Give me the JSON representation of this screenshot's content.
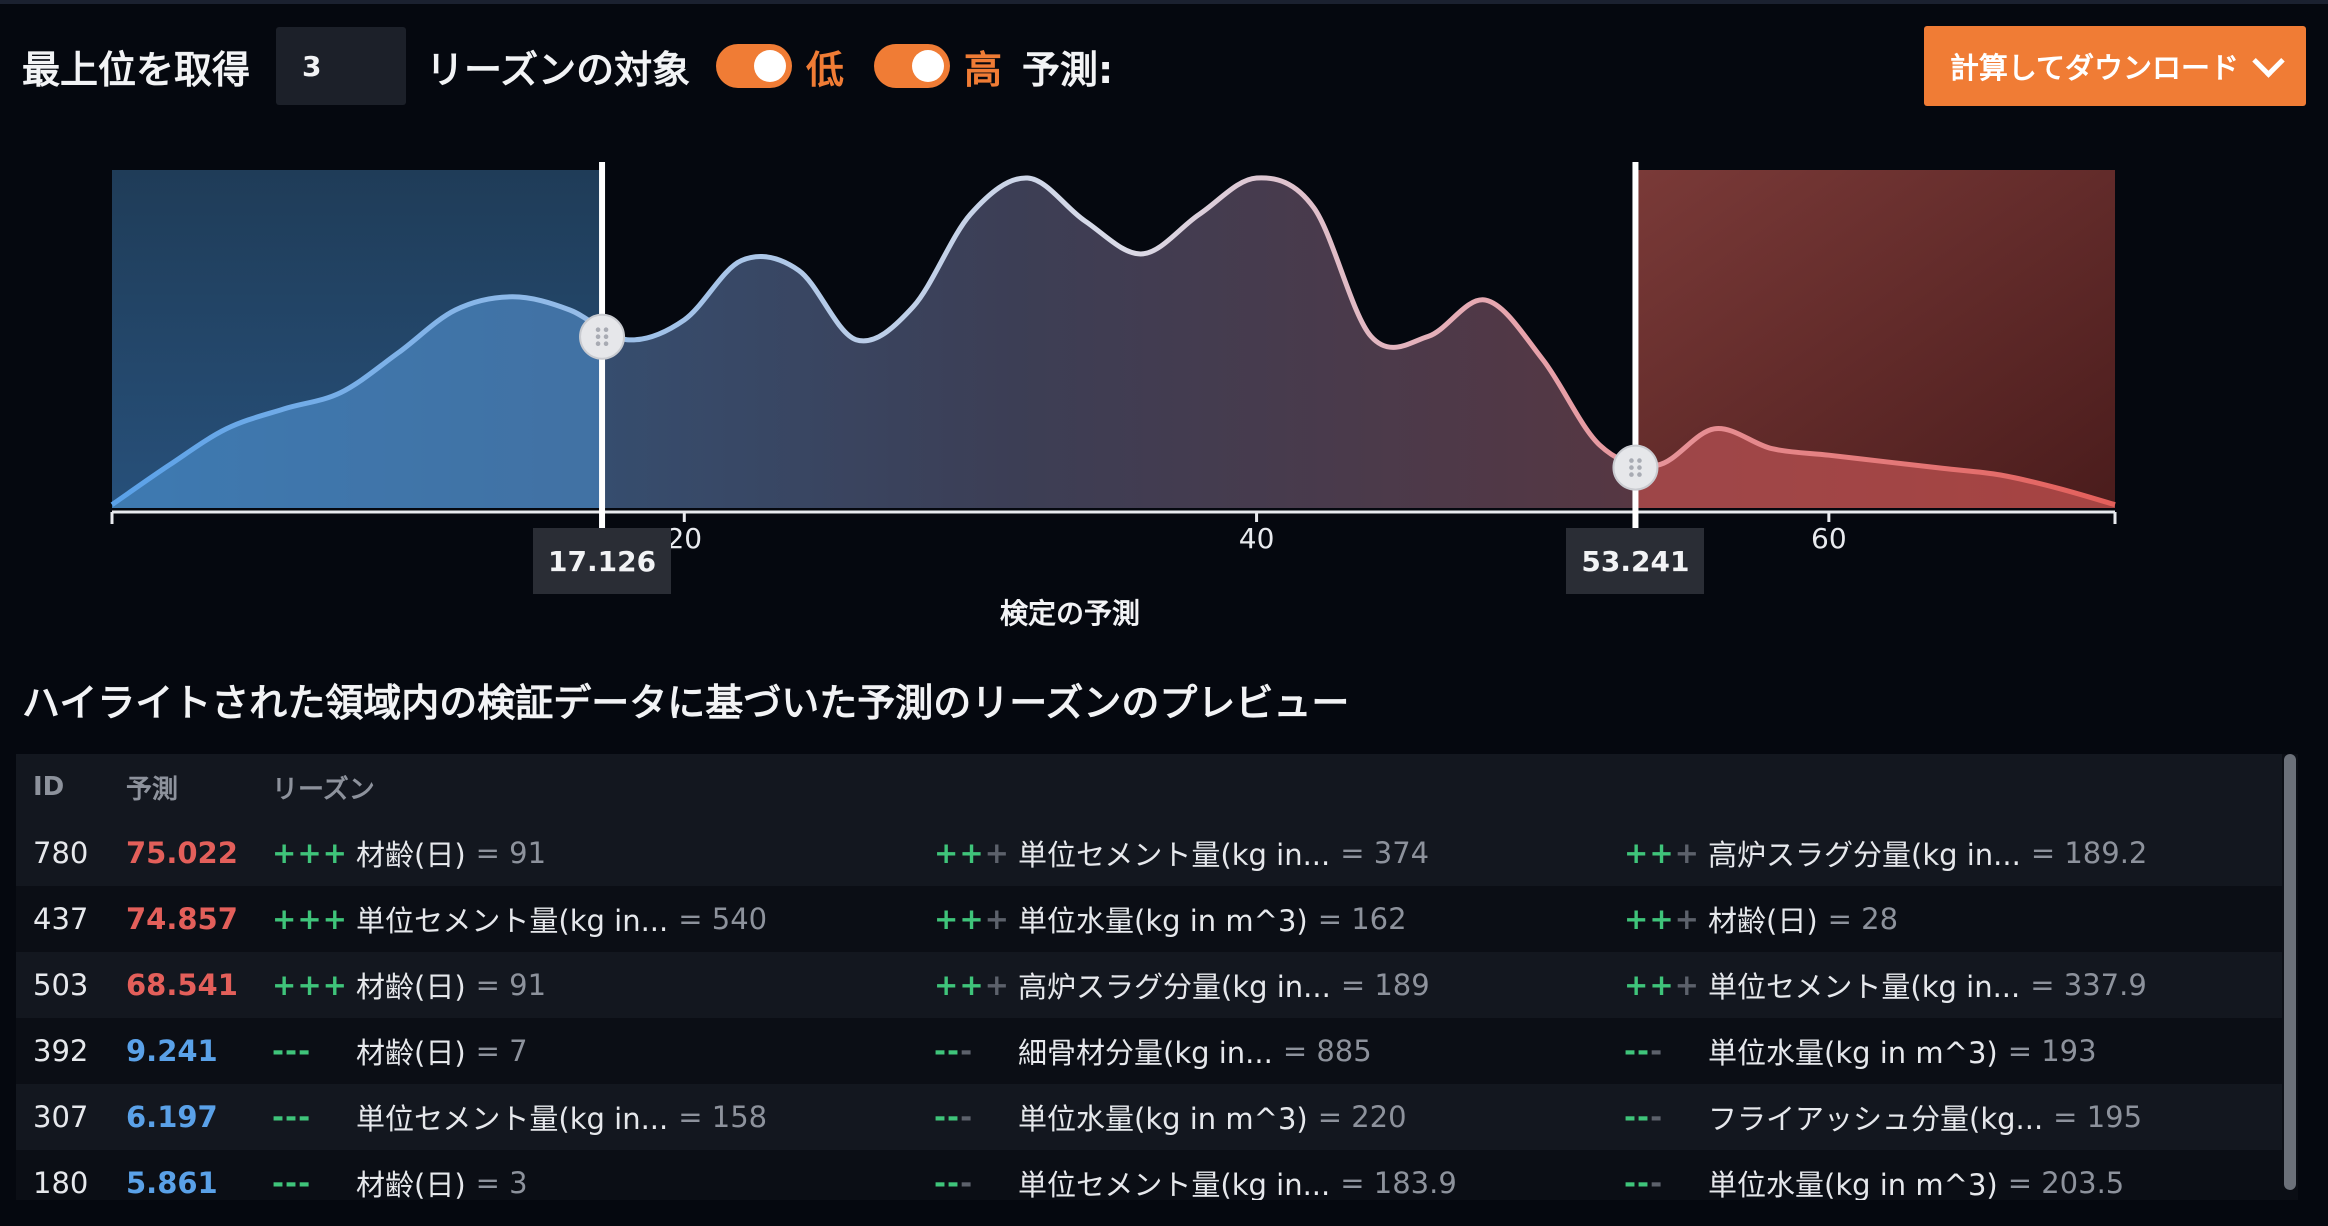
{
  "toolbar": {
    "top_label": "最上位を取得",
    "top_value": "3",
    "target_label": "リーズンの対象",
    "low_label": "低",
    "high_label": "高",
    "prediction_label": "予測:",
    "download_label": "計算してダウンロード"
  },
  "chart": {
    "xlabel": "検定の予測",
    "ticks": [
      "20",
      "40",
      "60"
    ],
    "low_threshold": "17.126",
    "high_threshold": "53.241",
    "colors": {
      "low": "#5aa1e8",
      "high": "#e35f5a",
      "accent": "#f07c35"
    }
  },
  "chart_data": {
    "type": "area",
    "xlabel": "検定の予測",
    "xlim": [
      0,
      70
    ],
    "x": [
      0,
      2,
      4,
      6,
      8,
      10,
      12,
      14,
      16,
      18,
      20,
      22,
      24,
      26,
      28,
      30,
      32,
      34,
      36,
      38,
      40,
      42,
      44,
      46,
      48,
      50,
      52,
      54,
      56,
      58,
      60,
      62,
      64,
      66,
      68,
      70
    ],
    "y": [
      0.01,
      0.13,
      0.24,
      0.3,
      0.35,
      0.47,
      0.6,
      0.64,
      0.6,
      0.51,
      0.57,
      0.75,
      0.72,
      0.51,
      0.61,
      0.89,
      1.0,
      0.87,
      0.77,
      0.89,
      1.0,
      0.91,
      0.52,
      0.52,
      0.63,
      0.45,
      0.19,
      0.13,
      0.24,
      0.18,
      0.16,
      0.14,
      0.12,
      0.1,
      0.06,
      0.01
    ],
    "thresholds": {
      "low": 17.126,
      "high": 53.241
    },
    "xticks": [
      20,
      40,
      60
    ]
  },
  "preview": {
    "title": "ハイライトされた領域内の検証データに基づいた予測のリーズンのプレビュー",
    "columns": [
      "ID",
      "予測",
      "リーズン"
    ],
    "rows": [
      {
        "id": "780",
        "pred": "75.022",
        "level": "high",
        "reasons": [
          {
            "sign": "+++",
            "strength": 3,
            "feature": "材齢(日)",
            "value": "= 91"
          },
          {
            "sign": "+++",
            "strength": 2,
            "feature": "単位セメント量(kg in...",
            "value": "= 374"
          },
          {
            "sign": "+++",
            "strength": 2,
            "feature": "高炉スラグ分量(kg in...",
            "value": "= 189.2"
          }
        ]
      },
      {
        "id": "437",
        "pred": "74.857",
        "level": "high",
        "reasons": [
          {
            "sign": "+++",
            "strength": 3,
            "feature": "単位セメント量(kg in...",
            "value": "= 540"
          },
          {
            "sign": "+++",
            "strength": 2,
            "feature": "単位水量(kg in m^3)",
            "value": "= 162"
          },
          {
            "sign": "+++",
            "strength": 2,
            "feature": "材齢(日)",
            "value": "= 28"
          }
        ]
      },
      {
        "id": "503",
        "pred": "68.541",
        "level": "high",
        "reasons": [
          {
            "sign": "+++",
            "strength": 3,
            "feature": "材齢(日)",
            "value": "= 91"
          },
          {
            "sign": "+++",
            "strength": 2,
            "feature": "高炉スラグ分量(kg in...",
            "value": "= 189"
          },
          {
            "sign": "+++",
            "strength": 2,
            "feature": "単位セメント量(kg in...",
            "value": "= 337.9"
          }
        ]
      },
      {
        "id": "392",
        "pred": "9.241",
        "level": "low",
        "reasons": [
          {
            "sign": "---",
            "strength": 3,
            "feature": "材齢(日)",
            "value": "= 7"
          },
          {
            "sign": "---",
            "strength": 2,
            "feature": "細骨材分量(kg in...",
            "value": "= 885"
          },
          {
            "sign": "---",
            "strength": 2,
            "feature": "単位水量(kg in m^3)",
            "value": "= 193"
          }
        ]
      },
      {
        "id": "307",
        "pred": "6.197",
        "level": "low",
        "reasons": [
          {
            "sign": "---",
            "strength": 3,
            "feature": "単位セメント量(kg in...",
            "value": "= 158"
          },
          {
            "sign": "---",
            "strength": 2,
            "feature": "単位水量(kg in m^3)",
            "value": "= 220"
          },
          {
            "sign": "---",
            "strength": 2,
            "feature": "フライアッシュ分量(kg...",
            "value": "= 195"
          }
        ]
      },
      {
        "id": "180",
        "pred": "5.861",
        "level": "low",
        "reasons": [
          {
            "sign": "---",
            "strength": 3,
            "feature": "材齢(日)",
            "value": "= 3"
          },
          {
            "sign": "---",
            "strength": 2,
            "feature": "単位セメント量(kg in...",
            "value": "= 183.9"
          },
          {
            "sign": "---",
            "strength": 2,
            "feature": "単位水量(kg in m^3)",
            "value": "= 203.5"
          }
        ]
      }
    ]
  }
}
